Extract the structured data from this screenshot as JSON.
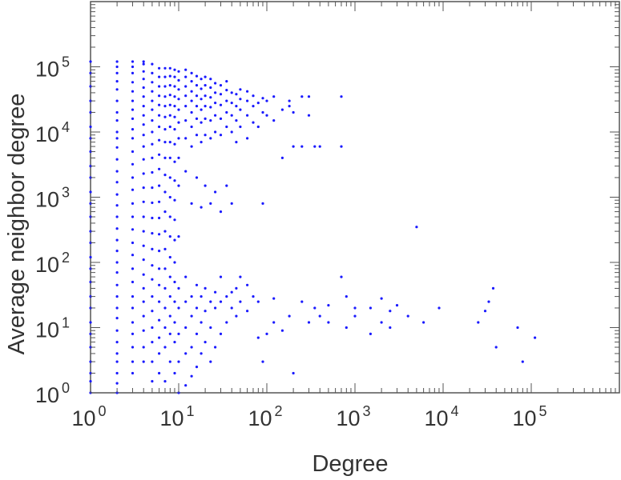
{
  "chart_data": {
    "type": "scatter",
    "title": "",
    "xlabel": "Degree",
    "ylabel": "Average neighbor degree",
    "x_scale": "log",
    "y_scale": "log",
    "xlim": [
      1,
      1000000
    ],
    "ylim": [
      1,
      1000000
    ],
    "grid": false,
    "legend": "none",
    "x_ticks": [
      {
        "base": "10",
        "exp": "0"
      },
      {
        "base": "10",
        "exp": "1"
      },
      {
        "base": "10",
        "exp": "2"
      },
      {
        "base": "10",
        "exp": "3"
      },
      {
        "base": "10",
        "exp": "4"
      },
      {
        "base": "10",
        "exp": "5"
      }
    ],
    "y_ticks": [
      {
        "base": "10",
        "exp": "0"
      },
      {
        "base": "10",
        "exp": "1"
      },
      {
        "base": "10",
        "exp": "2"
      },
      {
        "base": "10",
        "exp": "3"
      },
      {
        "base": "10",
        "exp": "4"
      },
      {
        "base": "10",
        "exp": "5"
      }
    ],
    "marker_color": "#1a1aff",
    "axis_color": "#555555",
    "text_color": "#333333",
    "points": [
      [
        1,
        1
      ],
      [
        1,
        1.5
      ],
      [
        1,
        2
      ],
      [
        1,
        3
      ],
      [
        1,
        5
      ],
      [
        1,
        8
      ],
      [
        1,
        12
      ],
      [
        1,
        20
      ],
      [
        1,
        30
      ],
      [
        1,
        50
      ],
      [
        1,
        80
      ],
      [
        1,
        120
      ],
      [
        1,
        200
      ],
      [
        1,
        300
      ],
      [
        1,
        500
      ],
      [
        1,
        800
      ],
      [
        1,
        1200
      ],
      [
        1,
        2000
      ],
      [
        1,
        3000
      ],
      [
        1,
        5000
      ],
      [
        1,
        8000
      ],
      [
        1,
        12000
      ],
      [
        1,
        20000
      ],
      [
        1,
        30000
      ],
      [
        1,
        50000
      ],
      [
        1,
        80000
      ],
      [
        1,
        120000
      ],
      [
        2,
        1
      ],
      [
        2,
        1.4
      ],
      [
        2,
        2
      ],
      [
        2,
        3
      ],
      [
        2,
        4
      ],
      [
        2,
        6
      ],
      [
        2,
        9
      ],
      [
        2,
        14
      ],
      [
        2,
        20
      ],
      [
        2,
        30
      ],
      [
        2,
        45
      ],
      [
        2,
        70
      ],
      [
        2,
        100
      ],
      [
        2,
        150
      ],
      [
        2,
        220
      ],
      [
        2,
        330
      ],
      [
        2,
        500
      ],
      [
        2,
        750
      ],
      [
        2,
        1100
      ],
      [
        2,
        1700
      ],
      [
        2,
        2500
      ],
      [
        2,
        3800
      ],
      [
        2,
        5800
      ],
      [
        2,
        8000
      ],
      [
        2,
        10000
      ],
      [
        2,
        15000
      ],
      [
        2,
        20000
      ],
      [
        2,
        30000
      ],
      [
        2,
        45000
      ],
      [
        2,
        60000
      ],
      [
        2,
        80000
      ],
      [
        2,
        100000
      ],
      [
        2,
        120000
      ],
      [
        3,
        2
      ],
      [
        3,
        3
      ],
      [
        3,
        5
      ],
      [
        3,
        8
      ],
      [
        3,
        12
      ],
      [
        3,
        20
      ],
      [
        3,
        30
      ],
      [
        3,
        50
      ],
      [
        3,
        80
      ],
      [
        3,
        130
      ],
      [
        3,
        200
      ],
      [
        3,
        320
      ],
      [
        3,
        500
      ],
      [
        3,
        800
      ],
      [
        3,
        1300
      ],
      [
        3,
        2000
      ],
      [
        3,
        3200
      ],
      [
        3,
        5000
      ],
      [
        3,
        8000
      ],
      [
        3,
        11000
      ],
      [
        3,
        16000
      ],
      [
        3,
        22000
      ],
      [
        3,
        30000
      ],
      [
        3,
        42000
      ],
      [
        3,
        58000
      ],
      [
        3,
        80000
      ],
      [
        3,
        100000
      ],
      [
        3,
        120000
      ],
      [
        4,
        3
      ],
      [
        4,
        5
      ],
      [
        4,
        9
      ],
      [
        4,
        15
      ],
      [
        4,
        25
      ],
      [
        4,
        40
      ],
      [
        4,
        65
      ],
      [
        4,
        110
      ],
      [
        4,
        180
      ],
      [
        4,
        300
      ],
      [
        4,
        500
      ],
      [
        4,
        850
      ],
      [
        4,
        1400
      ],
      [
        4,
        2300
      ],
      [
        4,
        3800
      ],
      [
        4,
        6000
      ],
      [
        4,
        9000
      ],
      [
        4,
        13000
      ],
      [
        4,
        18000
      ],
      [
        4,
        25000
      ],
      [
        4,
        35000
      ],
      [
        4,
        48000
      ],
      [
        4,
        65000
      ],
      [
        4,
        85000
      ],
      [
        4,
        110000
      ],
      [
        4,
        120000
      ],
      [
        5,
        1.5
      ],
      [
        5,
        3
      ],
      [
        5,
        6
      ],
      [
        5,
        10
      ],
      [
        5,
        18
      ],
      [
        5,
        30
      ],
      [
        5,
        55
      ],
      [
        5,
        90
      ],
      [
        5,
        160
      ],
      [
        5,
        280
      ],
      [
        5,
        480
      ],
      [
        5,
        820
      ],
      [
        5,
        1400
      ],
      [
        5,
        2400
      ],
      [
        5,
        4000
      ],
      [
        5,
        6500
      ],
      [
        5,
        10000
      ],
      [
        5,
        15000
      ],
      [
        5,
        22000
      ],
      [
        5,
        30000
      ],
      [
        5,
        42000
      ],
      [
        5,
        58000
      ],
      [
        5,
        80000
      ],
      [
        5,
        110000
      ],
      [
        6,
        2
      ],
      [
        6,
        4
      ],
      [
        6,
        7
      ],
      [
        6,
        13
      ],
      [
        6,
        25
      ],
      [
        6,
        45
      ],
      [
        6,
        80
      ],
      [
        6,
        150
      ],
      [
        6,
        270
      ],
      [
        6,
        480
      ],
      [
        6,
        850
      ],
      [
        6,
        1500
      ],
      [
        6,
        2700
      ],
      [
        6,
        4500
      ],
      [
        6,
        7500
      ],
      [
        6,
        12000
      ],
      [
        6,
        18000
      ],
      [
        6,
        26000
      ],
      [
        6,
        36000
      ],
      [
        6,
        50000
      ],
      [
        6,
        70000
      ],
      [
        6,
        95000
      ],
      [
        7,
        1.5
      ],
      [
        7,
        5
      ],
      [
        7,
        10
      ],
      [
        7,
        20
      ],
      [
        7,
        40
      ],
      [
        7,
        80
      ],
      [
        7,
        160
      ],
      [
        7,
        300
      ],
      [
        7,
        600
      ],
      [
        7,
        1200
      ],
      [
        7,
        2200
      ],
      [
        7,
        4000
      ],
      [
        7,
        7000
      ],
      [
        7,
        11000
      ],
      [
        7,
        17000
      ],
      [
        7,
        25000
      ],
      [
        7,
        35000
      ],
      [
        7,
        50000
      ],
      [
        7,
        70000
      ],
      [
        7,
        95000
      ],
      [
        8,
        3
      ],
      [
        8,
        8
      ],
      [
        8,
        15
      ],
      [
        8,
        30
      ],
      [
        8,
        60
      ],
      [
        8,
        120
      ],
      [
        8,
        250
      ],
      [
        8,
        500
      ],
      [
        8,
        1000
      ],
      [
        8,
        2000
      ],
      [
        8,
        4000
      ],
      [
        8,
        7000
      ],
      [
        8,
        12000
      ],
      [
        8,
        18000
      ],
      [
        8,
        26000
      ],
      [
        8,
        37000
      ],
      [
        8,
        52000
      ],
      [
        8,
        72000
      ],
      [
        8,
        95000
      ],
      [
        9,
        2
      ],
      [
        9,
        6
      ],
      [
        9,
        12
      ],
      [
        9,
        25
      ],
      [
        9,
        50
      ],
      [
        9,
        100
      ],
      [
        9,
        220
      ],
      [
        9,
        450
      ],
      [
        9,
        900
      ],
      [
        9,
        1800
      ],
      [
        9,
        3500
      ],
      [
        9,
        6500
      ],
      [
        9,
        11000
      ],
      [
        9,
        17000
      ],
      [
        9,
        25000
      ],
      [
        9,
        35000
      ],
      [
        9,
        50000
      ],
      [
        9,
        70000
      ],
      [
        9,
        90000
      ],
      [
        10,
        1
      ],
      [
        10,
        3
      ],
      [
        10,
        8
      ],
      [
        10,
        20
      ],
      [
        10,
        40
      ],
      [
        10,
        250
      ],
      [
        10,
        1500
      ],
      [
        10,
        4000
      ],
      [
        10,
        8000
      ],
      [
        10,
        14000
      ],
      [
        10,
        22000
      ],
      [
        10,
        32000
      ],
      [
        10,
        45000
      ],
      [
        10,
        62000
      ],
      [
        10,
        85000
      ],
      [
        12,
        1.3
      ],
      [
        12,
        4
      ],
      [
        12,
        10
      ],
      [
        12,
        25
      ],
      [
        12,
        60
      ],
      [
        12,
        2500
      ],
      [
        12,
        8000
      ],
      [
        12,
        15000
      ],
      [
        12,
        25000
      ],
      [
        12,
        36000
      ],
      [
        12,
        50000
      ],
      [
        12,
        70000
      ],
      [
        12,
        90000
      ],
      [
        14,
        1.8
      ],
      [
        14,
        5
      ],
      [
        14,
        15
      ],
      [
        14,
        30
      ],
      [
        14,
        800
      ],
      [
        14,
        6000
      ],
      [
        14,
        12000
      ],
      [
        14,
        20000
      ],
      [
        14,
        30000
      ],
      [
        14,
        42000
      ],
      [
        14,
        60000
      ],
      [
        14,
        80000
      ],
      [
        16,
        2.5
      ],
      [
        16,
        8
      ],
      [
        16,
        20
      ],
      [
        16,
        45
      ],
      [
        16,
        2000
      ],
      [
        16,
        9000
      ],
      [
        16,
        16000
      ],
      [
        16,
        25000
      ],
      [
        16,
        36000
      ],
      [
        16,
        52000
      ],
      [
        16,
        72000
      ],
      [
        18,
        4
      ],
      [
        18,
        12
      ],
      [
        18,
        30
      ],
      [
        18,
        700
      ],
      [
        18,
        7000
      ],
      [
        18,
        14000
      ],
      [
        18,
        22000
      ],
      [
        18,
        32000
      ],
      [
        18,
        46000
      ],
      [
        18,
        65000
      ],
      [
        20,
        6
      ],
      [
        20,
        18
      ],
      [
        20,
        40
      ],
      [
        20,
        1500
      ],
      [
        20,
        9000
      ],
      [
        20,
        16000
      ],
      [
        20,
        25000
      ],
      [
        20,
        36000
      ],
      [
        20,
        52000
      ],
      [
        20,
        70000
      ],
      [
        23,
        3
      ],
      [
        23,
        10
      ],
      [
        23,
        25
      ],
      [
        23,
        800
      ],
      [
        23,
        8000
      ],
      [
        23,
        15000
      ],
      [
        23,
        24000
      ],
      [
        23,
        34000
      ],
      [
        23,
        48000
      ],
      [
        23,
        65000
      ],
      [
        26,
        5
      ],
      [
        26,
        20
      ],
      [
        26,
        35
      ],
      [
        26,
        1200
      ],
      [
        26,
        10000
      ],
      [
        26,
        18000
      ],
      [
        26,
        28000
      ],
      [
        26,
        40000
      ],
      [
        26,
        56000
      ],
      [
        30,
        8
      ],
      [
        30,
        25
      ],
      [
        30,
        60
      ],
      [
        30,
        600
      ],
      [
        30,
        9000
      ],
      [
        30,
        16000
      ],
      [
        30,
        26000
      ],
      [
        30,
        38000
      ],
      [
        30,
        52000
      ],
      [
        35,
        12
      ],
      [
        35,
        30
      ],
      [
        35,
        1500
      ],
      [
        35,
        12000
      ],
      [
        35,
        20000
      ],
      [
        35,
        30000
      ],
      [
        35,
        44000
      ],
      [
        35,
        60000
      ],
      [
        40,
        20
      ],
      [
        40,
        35
      ],
      [
        40,
        800
      ],
      [
        40,
        10000
      ],
      [
        40,
        18000
      ],
      [
        40,
        28000
      ],
      [
        40,
        40000
      ],
      [
        45,
        15
      ],
      [
        45,
        40
      ],
      [
        45,
        7000
      ],
      [
        45,
        15000
      ],
      [
        45,
        25000
      ],
      [
        45,
        38000
      ],
      [
        50,
        25
      ],
      [
        50,
        60
      ],
      [
        50,
        12000
      ],
      [
        50,
        22000
      ],
      [
        50,
        32000
      ],
      [
        50,
        45000
      ],
      [
        60,
        18
      ],
      [
        60,
        45
      ],
      [
        60,
        8000
      ],
      [
        60,
        18000
      ],
      [
        60,
        30000
      ],
      [
        60,
        42000
      ],
      [
        70,
        30
      ],
      [
        70,
        14000
      ],
      [
        70,
        25000
      ],
      [
        70,
        36000
      ],
      [
        80,
        7
      ],
      [
        80,
        25
      ],
      [
        80,
        12000
      ],
      [
        80,
        28000
      ],
      [
        90,
        3
      ],
      [
        90,
        800
      ],
      [
        90,
        20000
      ],
      [
        90,
        33000
      ],
      [
        100,
        8
      ],
      [
        100,
        18000
      ],
      [
        100,
        30000
      ],
      [
        120,
        12
      ],
      [
        120,
        28
      ],
      [
        120,
        15000
      ],
      [
        120,
        35000
      ],
      [
        150,
        9
      ],
      [
        150,
        22000
      ],
      [
        150,
        4000
      ],
      [
        180,
        15
      ],
      [
        180,
        25000
      ],
      [
        180,
        30000
      ],
      [
        200,
        2
      ],
      [
        200,
        6000
      ],
      [
        200,
        20000
      ],
      [
        250,
        25
      ],
      [
        250,
        6000
      ],
      [
        250,
        35000
      ],
      [
        300,
        12
      ],
      [
        300,
        18000
      ],
      [
        300,
        35000
      ],
      [
        350,
        6000
      ],
      [
        350,
        20
      ],
      [
        400,
        6000
      ],
      [
        400,
        15
      ],
      [
        500,
        22
      ],
      [
        500,
        12
      ],
      [
        700,
        6000
      ],
      [
        700,
        35000
      ],
      [
        700,
        60
      ],
      [
        800,
        30
      ],
      [
        800,
        10
      ],
      [
        1000,
        20
      ],
      [
        1000,
        15
      ],
      [
        1500,
        8
      ],
      [
        1500,
        20
      ],
      [
        2000,
        12
      ],
      [
        2000,
        28
      ],
      [
        2500,
        18
      ],
      [
        2500,
        10
      ],
      [
        3000,
        22
      ],
      [
        4000,
        15
      ],
      [
        5000,
        350
      ],
      [
        6000,
        12
      ],
      [
        9000,
        20
      ],
      [
        25000,
        12
      ],
      [
        30000,
        18
      ],
      [
        33000,
        25
      ],
      [
        37000,
        40
      ],
      [
        40000,
        5
      ],
      [
        70000,
        10
      ],
      [
        80000,
        3
      ],
      [
        110000,
        7
      ]
    ]
  }
}
